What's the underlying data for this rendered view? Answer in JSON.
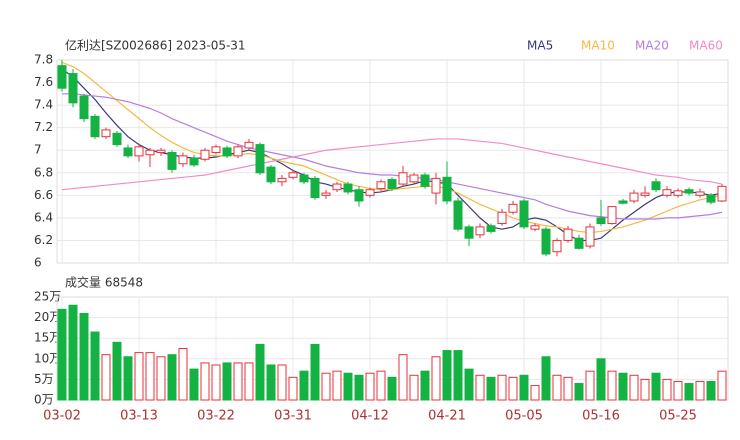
{
  "chart_data": [
    {
      "type": "candlestick",
      "title": "亿利达[SZ002686] 2023-05-31",
      "up_color": "#e8323c",
      "down_color": "#14b143",
      "legend": "top-right",
      "grid": true,
      "ylim": [
        6,
        7.8
      ],
      "yticks": [
        6,
        6.2,
        6.4,
        6.6,
        6.8,
        7,
        7.2,
        7.4,
        7.6,
        7.8
      ],
      "candles": [
        [
          7.75,
          7.8,
          7.52,
          7.55
        ],
        [
          7.68,
          7.72,
          7.38,
          7.42
        ],
        [
          7.48,
          7.5,
          7.25,
          7.28
        ],
        [
          7.3,
          7.32,
          7.1,
          7.12
        ],
        [
          7.12,
          7.2,
          7.1,
          7.18
        ],
        [
          7.15,
          7.17,
          7.03,
          7.05
        ],
        [
          7.02,
          7.05,
          6.93,
          6.95
        ],
        [
          6.95,
          7.06,
          6.9,
          7.03
        ],
        [
          6.96,
          7.02,
          6.85,
          7.0
        ],
        [
          6.98,
          7.02,
          6.95,
          7.0
        ],
        [
          6.98,
          7.0,
          6.8,
          6.83
        ],
        [
          6.88,
          6.98,
          6.85,
          6.95
        ],
        [
          6.93,
          6.96,
          6.85,
          6.87
        ],
        [
          6.92,
          7.02,
          6.9,
          7.0
        ],
        [
          6.98,
          7.05,
          6.96,
          7.03
        ],
        [
          7.02,
          7.04,
          6.93,
          6.95
        ],
        [
          6.95,
          7.05,
          6.93,
          7.03
        ],
        [
          7.02,
          7.1,
          7.0,
          7.07
        ],
        [
          7.05,
          7.07,
          6.78,
          6.8
        ],
        [
          6.85,
          6.87,
          6.7,
          6.72
        ],
        [
          6.72,
          6.78,
          6.68,
          6.75
        ],
        [
          6.76,
          6.82,
          6.74,
          6.8
        ],
        [
          6.78,
          6.8,
          6.7,
          6.72
        ],
        [
          6.75,
          6.77,
          6.56,
          6.58
        ],
        [
          6.6,
          6.65,
          6.57,
          6.62
        ],
        [
          6.65,
          6.72,
          6.63,
          6.7
        ],
        [
          6.7,
          6.72,
          6.61,
          6.63
        ],
        [
          6.65,
          6.68,
          6.5,
          6.55
        ],
        [
          6.6,
          6.67,
          6.58,
          6.65
        ],
        [
          6.66,
          6.74,
          6.64,
          6.72
        ],
        [
          6.74,
          6.76,
          6.64,
          6.66
        ],
        [
          6.7,
          6.86,
          6.68,
          6.8
        ],
        [
          6.72,
          6.8,
          6.7,
          6.78
        ],
        [
          6.78,
          6.8,
          6.66,
          6.68
        ],
        [
          6.62,
          6.8,
          6.52,
          6.75
        ],
        [
          6.76,
          6.9,
          6.52,
          6.55
        ],
        [
          6.55,
          6.58,
          6.28,
          6.3
        ],
        [
          6.32,
          6.34,
          6.15,
          6.22
        ],
        [
          6.25,
          6.35,
          6.22,
          6.32
        ],
        [
          6.33,
          6.35,
          6.26,
          6.28
        ],
        [
          6.35,
          6.48,
          6.33,
          6.45
        ],
        [
          6.45,
          6.55,
          6.43,
          6.52
        ],
        [
          6.55,
          6.57,
          6.3,
          6.32
        ],
        [
          6.3,
          6.35,
          6.28,
          6.33
        ],
        [
          6.3,
          6.32,
          6.06,
          6.08
        ],
        [
          6.1,
          6.22,
          6.06,
          6.2
        ],
        [
          6.2,
          6.33,
          6.18,
          6.3
        ],
        [
          6.22,
          6.25,
          6.12,
          6.13
        ],
        [
          6.15,
          6.35,
          6.13,
          6.32
        ],
        [
          6.4,
          6.56,
          6.33,
          6.35
        ],
        [
          6.35,
          6.5,
          6.34,
          6.5
        ],
        [
          6.55,
          6.57,
          6.52,
          6.53
        ],
        [
          6.55,
          6.65,
          6.53,
          6.62
        ],
        [
          6.6,
          6.68,
          6.58,
          6.62
        ],
        [
          6.72,
          6.75,
          6.63,
          6.65
        ],
        [
          6.6,
          6.68,
          6.58,
          6.65
        ],
        [
          6.6,
          6.66,
          6.58,
          6.64
        ],
        [
          6.65,
          6.67,
          6.6,
          6.62
        ],
        [
          6.6,
          6.66,
          6.58,
          6.63
        ],
        [
          6.6,
          6.62,
          6.52,
          6.54
        ],
        [
          6.55,
          6.7,
          6.54,
          6.68
        ]
      ],
      "series": [
        {
          "name": "MA5",
          "color": "#3a3a78",
          "values": [
            7.72,
            7.65,
            7.55,
            7.45,
            7.33,
            7.22,
            7.12,
            7.05,
            7.0,
            6.98,
            6.96,
            6.94,
            6.93,
            6.93,
            6.94,
            6.96,
            6.98,
            7.0,
            6.98,
            6.93,
            6.88,
            6.82,
            6.78,
            6.72,
            6.7,
            6.67,
            6.65,
            6.63,
            6.62,
            6.63,
            6.65,
            6.68,
            6.7,
            6.73,
            6.72,
            6.7,
            6.6,
            6.5,
            6.4,
            6.32,
            6.3,
            6.32,
            6.38,
            6.4,
            6.38,
            6.32,
            6.25,
            6.2,
            6.2,
            6.22,
            6.3,
            6.38,
            6.45,
            6.52,
            6.58,
            6.62,
            6.63,
            6.63,
            6.62,
            6.6,
            6.62
          ]
        },
        {
          "name": "MA10",
          "color": "#f5b942",
          "values": [
            7.78,
            7.74,
            7.68,
            7.6,
            7.52,
            7.44,
            7.36,
            7.28,
            7.2,
            7.13,
            7.07,
            7.02,
            6.98,
            6.96,
            6.95,
            6.95,
            6.96,
            6.97,
            6.96,
            6.93,
            6.9,
            6.88,
            6.86,
            6.82,
            6.78,
            6.74,
            6.7,
            6.68,
            6.66,
            6.65,
            6.65,
            6.66,
            6.67,
            6.68,
            6.68,
            6.66,
            6.62,
            6.57,
            6.52,
            6.48,
            6.44,
            6.4,
            6.37,
            6.35,
            6.33,
            6.32,
            6.3,
            6.28,
            6.27,
            6.28,
            6.3,
            6.32,
            6.35,
            6.38,
            6.42,
            6.46,
            6.5,
            6.53,
            6.56,
            6.58,
            6.6
          ]
        },
        {
          "name": "MA20",
          "color": "#b57ee0",
          "values": [
            7.5,
            7.5,
            7.49,
            7.48,
            7.47,
            7.45,
            7.43,
            7.4,
            7.37,
            7.33,
            7.28,
            7.24,
            7.2,
            7.16,
            7.12,
            7.08,
            7.05,
            7.02,
            7.0,
            6.98,
            6.96,
            6.94,
            6.92,
            6.89,
            6.86,
            6.84,
            6.82,
            6.8,
            6.79,
            6.78,
            6.78,
            6.77,
            6.76,
            6.75,
            6.74,
            6.72,
            6.7,
            6.68,
            6.66,
            6.64,
            6.62,
            6.6,
            6.58,
            6.56,
            6.52,
            6.49,
            6.46,
            6.44,
            6.42,
            6.41,
            6.4,
            6.39,
            6.39,
            6.39,
            6.39,
            6.4,
            6.4,
            6.41,
            6.42,
            6.43,
            6.45
          ]
        },
        {
          "name": "MA60",
          "color": "#f08cc8",
          "values": [
            6.65,
            6.66,
            6.67,
            6.68,
            6.69,
            6.7,
            6.71,
            6.72,
            6.73,
            6.74,
            6.75,
            6.76,
            6.77,
            6.78,
            6.8,
            6.82,
            6.84,
            6.86,
            6.88,
            6.9,
            6.92,
            6.94,
            6.96,
            6.98,
            7.0,
            7.01,
            7.02,
            7.03,
            7.04,
            7.05,
            7.06,
            7.07,
            7.08,
            7.09,
            7.1,
            7.1,
            7.1,
            7.09,
            7.08,
            7.07,
            7.06,
            7.04,
            7.02,
            7.0,
            6.98,
            6.96,
            6.94,
            6.92,
            6.9,
            6.88,
            6.86,
            6.84,
            6.82,
            6.8,
            6.78,
            6.77,
            6.76,
            6.74,
            6.73,
            6.72,
            6.7
          ]
        }
      ]
    },
    {
      "type": "bar",
      "title": "成交量 68548",
      "grid": true,
      "ylim": [
        0,
        25
      ],
      "yticks": [
        {
          "value": 0,
          "label": "0万"
        },
        {
          "value": 5,
          "label": "5万"
        },
        {
          "value": 10,
          "label": "10万"
        },
        {
          "value": 15,
          "label": "15万"
        },
        {
          "value": 20,
          "label": "20万"
        },
        {
          "value": 25,
          "label": "25万"
        }
      ],
      "categories": [
        "03-02",
        null,
        null,
        null,
        null,
        null,
        null,
        "03-13",
        null,
        null,
        null,
        null,
        null,
        null,
        "03-22",
        null,
        null,
        null,
        null,
        null,
        null,
        "03-31",
        null,
        null,
        null,
        null,
        null,
        null,
        "04-12",
        null,
        null,
        null,
        null,
        null,
        null,
        "04-21",
        null,
        null,
        null,
        null,
        null,
        null,
        "05-05",
        null,
        null,
        null,
        null,
        null,
        null,
        "05-16",
        null,
        null,
        null,
        null,
        null,
        null,
        "05-25",
        null,
        null,
        null,
        null
      ],
      "values": [
        22,
        23,
        21,
        16.5,
        11,
        14,
        10.5,
        11.5,
        11.5,
        10.5,
        11,
        12.5,
        7.5,
        9,
        8.5,
        9,
        9,
        9,
        13.5,
        8.5,
        8.5,
        5.5,
        7,
        13.5,
        6.5,
        7,
        6.5,
        6,
        6.5,
        7,
        5.5,
        11,
        6,
        7,
        10.5,
        12,
        12,
        7.5,
        6,
        5.5,
        6,
        5.5,
        6,
        3.5,
        10.5,
        6,
        5.5,
        4,
        7,
        10,
        7,
        6.5,
        6,
        5,
        6.5,
        5,
        4.5,
        4,
        4.5,
        4.5,
        7
      ]
    }
  ]
}
